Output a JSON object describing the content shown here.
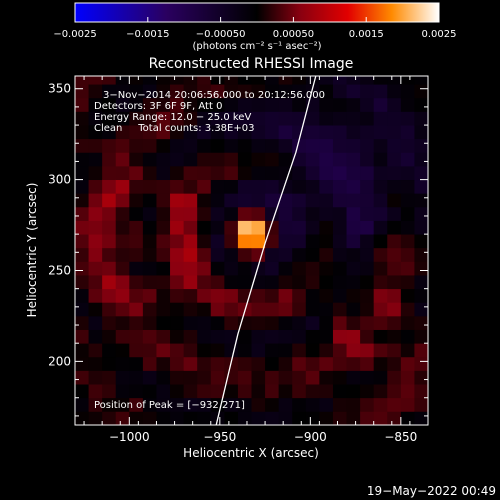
{
  "chart_data": {
    "type": "heatmap",
    "title": "Reconstructed RHESSI Image",
    "xlabel": "Heliocentric X (arcsec)",
    "ylabel": "Heliocentric Y (arcsec)",
    "xlim": [
      -1030,
      -835
    ],
    "ylim": [
      165,
      357
    ],
    "x_ticks": [
      -1000,
      -950,
      -900,
      -850
    ],
    "x_tick_labels": [
      "−1000",
      "−950",
      "−900",
      "−850"
    ],
    "y_ticks": [
      200,
      250,
      300,
      350
    ],
    "y_tick_labels": [
      "200",
      "250",
      "300",
      "350"
    ],
    "colorbar": {
      "range": [
        -0.0025,
        0.0025
      ],
      "ticks": [
        -0.0025,
        -0.0015,
        -0.0005,
        0.0005,
        0.0015,
        0.0025
      ],
      "tick_labels": [
        "−0.0025",
        "−0.0015",
        "−0.00050",
        "0.00050",
        "0.0015",
        "0.0025"
      ],
      "unit_label": "(photons cm⁻² s⁻¹ asec⁻²)"
    },
    "info_lines": [
      "3−Nov−2014 20:06:56.000 to 20:12:56.000",
      "Detectors: 3F 6F 9F, Att 0",
      "Energy Range: 12.0 − 25.0 keV",
      "Clean     Total counts: 3.38E+03"
    ],
    "peak_label": "Position of Peak = [−932,271]",
    "peak": {
      "x": -932,
      "y": 271
    },
    "limb_line": [
      [
        -952,
        165
      ],
      [
        -940,
        215
      ],
      [
        -925,
        265
      ],
      [
        -908,
        315
      ],
      [
        -897,
        357
      ]
    ],
    "grid": false
  },
  "footer": {
    "date": "19−May−2022 00:49"
  }
}
